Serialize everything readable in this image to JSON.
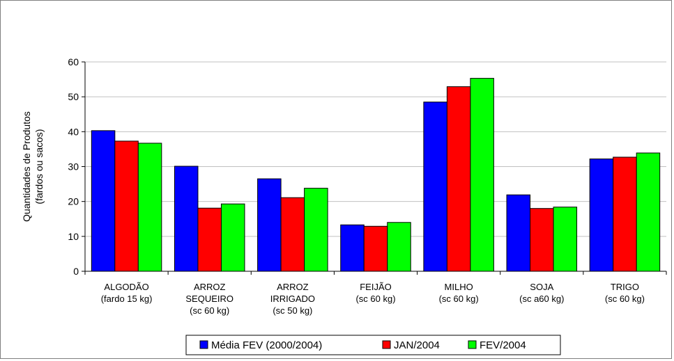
{
  "chart_data": {
    "type": "bar",
    "title": "",
    "xlabel": "",
    "ylabel_lines": [
      "Quantidades de Produtos",
      "(fardos ou sacos)"
    ],
    "ylim": [
      0,
      60
    ],
    "yticks": [
      0,
      10,
      20,
      30,
      40,
      50,
      60
    ],
    "grid": true,
    "legend_position": "bottom",
    "categories": [
      [
        "ALGODÃO",
        "(fardo 15 kg)"
      ],
      [
        "ARROZ",
        "SEQUEIRO",
        "(sc 60 kg)"
      ],
      [
        "ARROZ",
        "IRRIGADO",
        "(sc 50 kg)"
      ],
      [
        "FEIJÃO",
        "(sc 60 kg)"
      ],
      [
        "MILHO",
        "(sc 60 kg)"
      ],
      [
        "SOJA",
        "(sc a60 kg)"
      ],
      [
        "TRIGO",
        "(sc 60 kg)"
      ]
    ],
    "series": [
      {
        "name": "Média FEV (2000/2004)",
        "color": "#0000ff",
        "values": [
          40.3,
          30.1,
          26.5,
          13.3,
          48.5,
          21.9,
          32.2
        ]
      },
      {
        "name": "JAN/2004",
        "color": "#ff0000",
        "values": [
          37.3,
          18.1,
          21.1,
          12.9,
          52.9,
          18.0,
          32.7
        ]
      },
      {
        "name": "FEV/2004",
        "color": "#00ff00",
        "values": [
          36.7,
          19.3,
          23.8,
          14.0,
          55.3,
          18.4,
          33.9
        ]
      }
    ]
  }
}
